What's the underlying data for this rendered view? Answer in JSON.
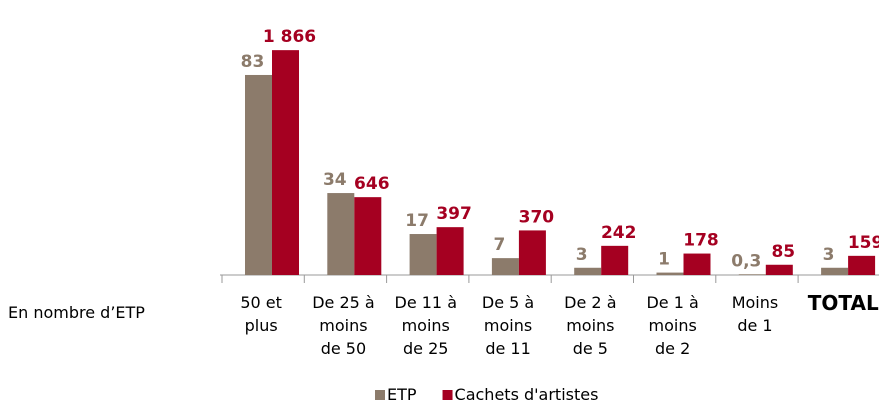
{
  "chart_data": {
    "type": "bar",
    "x_label": "En nombre d’ETP",
    "categories": [
      "50 et\nplus",
      "De 25 à\nmoins\nde 50",
      "De 11 à\nmoins\nde 25",
      "De 5 à\nmoins\nde 11",
      "De 2 à\nmoins\nde 5",
      "De 1 à\nmoins\nde 2",
      "Moins\nde 1",
      "TOTAL"
    ],
    "series": [
      {
        "name": "ETP",
        "color": "#8c7b6b",
        "values": [
          83,
          34,
          17,
          7,
          3,
          1,
          0.3,
          3
        ],
        "value_labels": [
          "83",
          "34",
          "17",
          "7",
          "3",
          "1",
          "0,3",
          "3"
        ]
      },
      {
        "name": "Cachets d'artistes",
        "color": "#a50021",
        "axis": "y2",
        "values": [
          1866,
          646,
          397,
          370,
          242,
          178,
          85,
          159
        ],
        "value_labels": [
          "1 866",
          "646",
          "397",
          "370",
          "242",
          "178",
          "85",
          "159"
        ]
      }
    ],
    "ylim": [
      0,
      100
    ],
    "y2lim": [
      0,
      2000
    ],
    "legend": "bottom"
  }
}
